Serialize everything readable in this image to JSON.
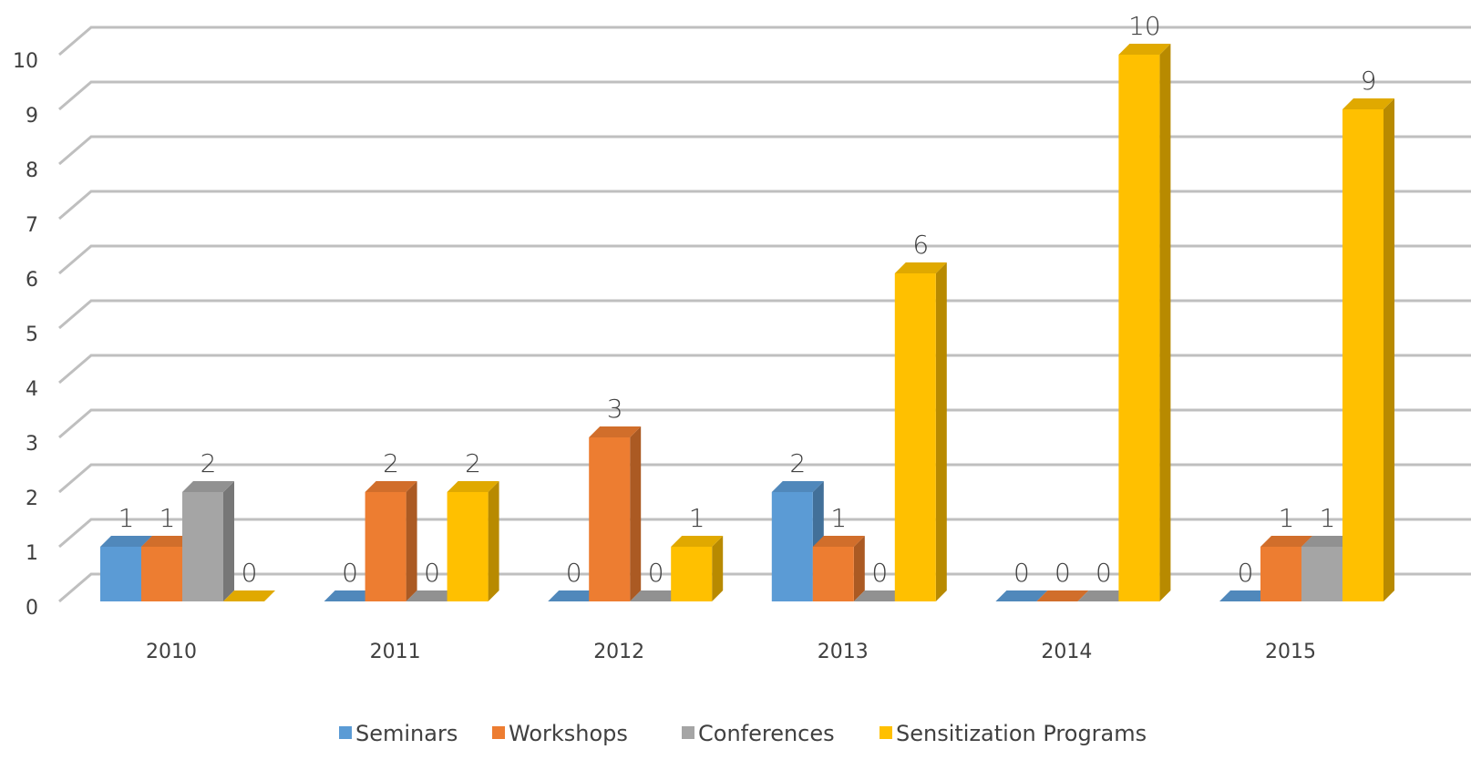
{
  "chart_data": {
    "type": "bar3d",
    "categories": [
      "2010",
      "2011",
      "2012",
      "2013",
      "2014",
      "2015"
    ],
    "series": [
      {
        "name": "Seminars",
        "color": "#5b9bd5",
        "values": [
          1,
          0,
          0,
          2,
          0,
          0
        ]
      },
      {
        "name": "Workshops",
        "color": "#ed7d31",
        "values": [
          1,
          2,
          3,
          1,
          0,
          1
        ]
      },
      {
        "name": "Conferences",
        "color": "#a5a5a5",
        "values": [
          2,
          0,
          0,
          0,
          0,
          1
        ]
      },
      {
        "name": "Sensitization Programs",
        "color": "#ffc000",
        "values": [
          0,
          2,
          1,
          6,
          10,
          9
        ]
      }
    ],
    "ylim": [
      0,
      10
    ],
    "yticks": [
      0,
      1,
      2,
      3,
      4,
      5,
      6,
      7,
      8,
      9,
      10
    ],
    "grid": true,
    "legend": "bottom"
  }
}
